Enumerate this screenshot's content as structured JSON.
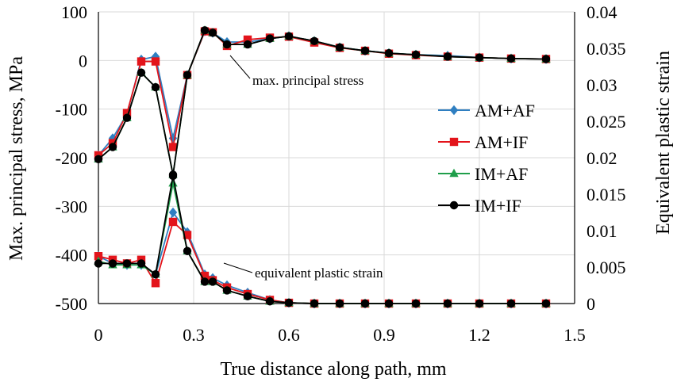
{
  "chart_data": {
    "type": "line",
    "xlabel": "True distance along path, mm",
    "ylabel_left": "Max. principal stress, MPa",
    "ylabel_right": "Equivalent plastic strain",
    "xlim": [
      0,
      1.5
    ],
    "ylim_left": [
      -500,
      100
    ],
    "ylim_right": [
      0,
      0.04
    ],
    "x_ticks": [
      "0",
      "0.3",
      "0.6",
      "0.9",
      "1.2",
      "1.5"
    ],
    "y_left_ticks": [
      "100",
      "0",
      "-100",
      "-200",
      "-300",
      "-400",
      "-500"
    ],
    "y_right_ticks": [
      "0.04",
      "0.035",
      "0.03",
      "0.025",
      "0.02",
      "0.015",
      "0.01",
      "0.005",
      "0"
    ],
    "grid": true,
    "legend_position": "right",
    "annotations": [
      {
        "text": "max. principal stress"
      },
      {
        "text": "equivalent plastic strain"
      }
    ],
    "x": [
      0,
      0.045,
      0.09,
      0.135,
      0.18,
      0.235,
      0.28,
      0.335,
      0.36,
      0.405,
      0.47,
      0.54,
      0.6,
      0.68,
      0.76,
      0.84,
      0.915,
      1.0,
      1.1,
      1.2,
      1.3,
      1.41
    ],
    "series": [
      {
        "name": "AM+AF",
        "color": "#2f7fc1",
        "marker": "diamond",
        "stress": [
          -195,
          -160,
          -110,
          2,
          8,
          -160,
          -30,
          60,
          57,
          38,
          38,
          45,
          50,
          40,
          27,
          20,
          15,
          12,
          10,
          6,
          4,
          3
        ],
        "strain": [
          0.0065,
          0.0055,
          0.0053,
          0.0053,
          0.004,
          0.0125,
          0.0098,
          0.004,
          0.0035,
          0.0025,
          0.0015,
          0.0005,
          0.0001,
          0,
          0,
          0,
          0,
          0,
          0,
          0,
          0,
          0
        ]
      },
      {
        "name": "AM+IF",
        "color": "#e3141b",
        "marker": "square",
        "stress": [
          -195,
          -170,
          -108,
          -2,
          -2,
          -178,
          -30,
          60,
          58,
          30,
          43,
          47,
          49,
          37,
          26,
          20,
          14,
          11,
          8,
          6,
          4,
          3
        ],
        "strain": [
          0.0065,
          0.006,
          0.0055,
          0.006,
          0.0028,
          0.0112,
          0.0094,
          0.0038,
          0.0032,
          0.0022,
          0.0013,
          0.0005,
          0.0001,
          0,
          0,
          0,
          0,
          0,
          0,
          0,
          0,
          0
        ]
      },
      {
        "name": "IM+AF",
        "color": "#1f9e4a",
        "marker": "triangle",
        "stress": [
          -203,
          -178,
          -118,
          -25,
          -55,
          -235,
          -30,
          62,
          57,
          33,
          33,
          45,
          50,
          40,
          27,
          20,
          15,
          12,
          8,
          6,
          4,
          3
        ],
        "strain": [
          0.0058,
          0.0053,
          0.0053,
          0.0053,
          0.004,
          0.0165,
          0.0072,
          0.003,
          0.003,
          0.0018,
          0.001,
          0.0003,
          0.0001,
          0,
          0,
          0,
          0,
          0,
          0,
          0,
          0,
          0
        ]
      },
      {
        "name": "IM+IF",
        "color": "#000000",
        "marker": "circle",
        "stress": [
          -203,
          -178,
          -118,
          -25,
          -55,
          -235,
          -30,
          62,
          57,
          33,
          33,
          45,
          50,
          40,
          27,
          20,
          15,
          12,
          8,
          6,
          4,
          3
        ],
        "strain": [
          0.0055,
          0.0055,
          0.0055,
          0.0055,
          0.004,
          0.0175,
          0.0072,
          0.003,
          0.003,
          0.0018,
          0.001,
          0.0003,
          0.0001,
          0,
          0,
          0,
          0,
          0,
          0,
          0,
          0,
          0
        ]
      }
    ]
  }
}
